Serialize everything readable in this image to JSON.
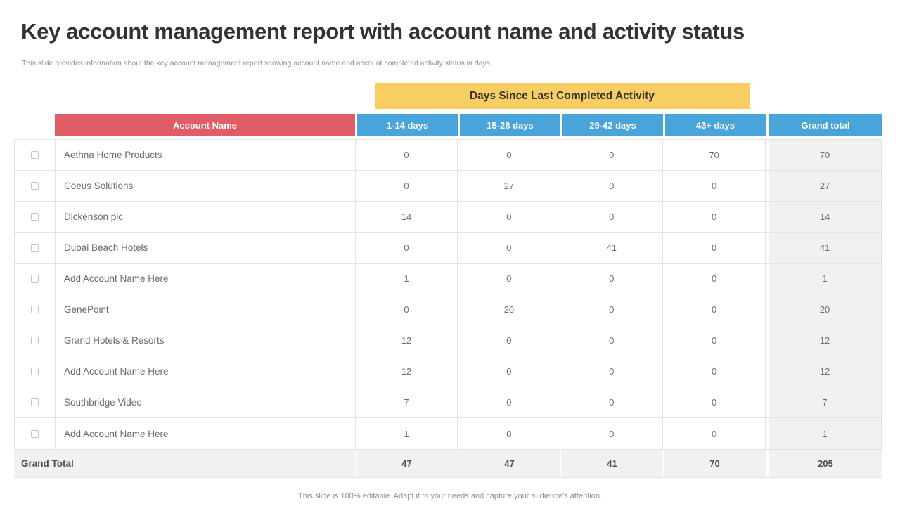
{
  "slide": {
    "title": "Key account management report with account name and activity status",
    "subtitle": "This slide provides information about the key account management report showing account name and account completed activity status in days.",
    "caption": "This slide is 100% editable. Adapt it to your needs and capture your audience's attention."
  },
  "banner": {
    "label": "Days Since Last Completed Activity"
  },
  "table": {
    "headers": {
      "account": "Account Name",
      "days": [
        "1-14 days",
        "15-28 days",
        "29-42 days",
        "43+ days"
      ],
      "grand_total": "Grand total"
    },
    "rows": [
      {
        "name": "Aethna Home Products",
        "values": [
          "0",
          "0",
          "0",
          "70"
        ],
        "total": "70"
      },
      {
        "name": "Coeus Solutions",
        "values": [
          "0",
          "27",
          "0",
          "0"
        ],
        "total": "27"
      },
      {
        "name": "Dickenson plc",
        "values": [
          "14",
          "0",
          "0",
          "0"
        ],
        "total": "14"
      },
      {
        "name": "Dubai Beach Hotels",
        "values": [
          "0",
          "0",
          "41",
          "0"
        ],
        "total": "41"
      },
      {
        "name": "Add Account Name Here",
        "values": [
          "1",
          "0",
          "0",
          "0"
        ],
        "total": "1"
      },
      {
        "name": "GenePoint",
        "values": [
          "0",
          "20",
          "0",
          "0"
        ],
        "total": "20"
      },
      {
        "name": "Grand Hotels & Resorts",
        "values": [
          "12",
          "0",
          "0",
          "0"
        ],
        "total": "12"
      },
      {
        "name": "Add Account Name Here",
        "values": [
          "12",
          "0",
          "0",
          "0"
        ],
        "total": "12"
      },
      {
        "name": "Southbridge Video",
        "values": [
          "7",
          "0",
          "0",
          "0"
        ],
        "total": "7"
      },
      {
        "name": "Add Account Name Here",
        "values": [
          "1",
          "0",
          "0",
          "0"
        ],
        "total": "1"
      }
    ],
    "footer": {
      "label": "Grand Total",
      "values": [
        "47",
        "47",
        "41",
        "70"
      ],
      "total": "205"
    }
  },
  "colors": {
    "accent_red": "#E05C66",
    "accent_blue": "#49A5D9",
    "accent_yellow": "#F8CE63",
    "total_column_bg": "#F1F1F1"
  }
}
